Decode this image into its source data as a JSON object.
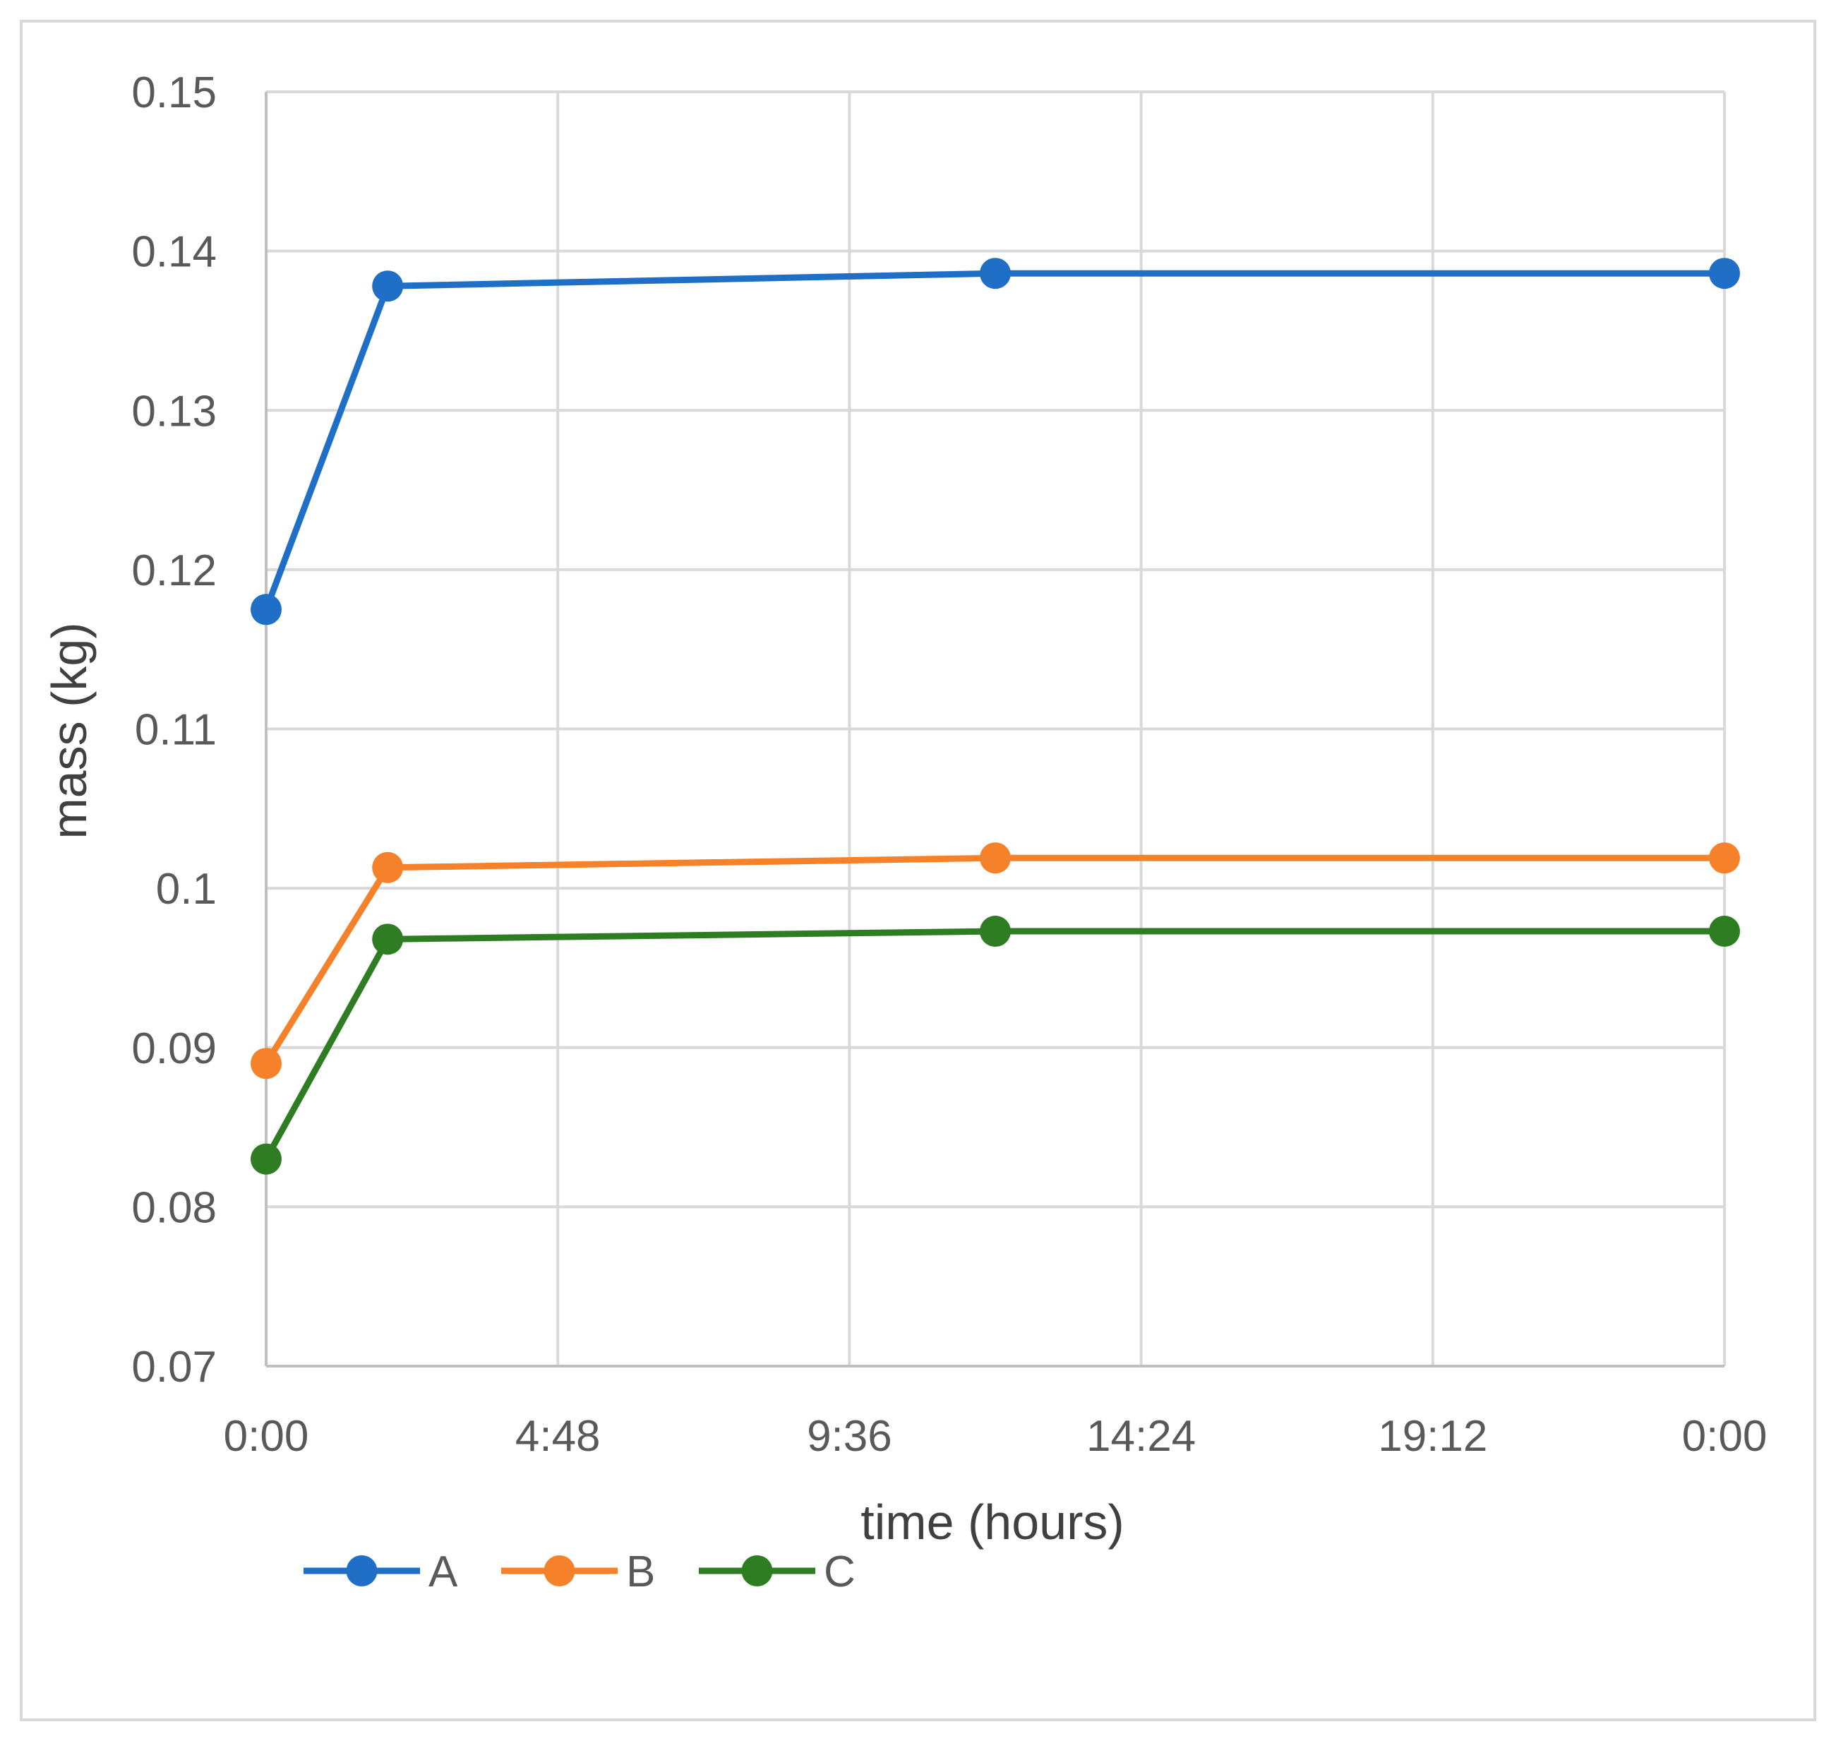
{
  "chart_data": {
    "type": "line",
    "title": "",
    "xlabel": "time (hours)",
    "ylabel": "mass (kg)",
    "xlim": [
      "0:00",
      "0:00"
    ],
    "ylim": [
      0.07,
      0.15
    ],
    "x_ticks": [
      "0:00",
      "4:48",
      "9:36",
      "14:24",
      "19:12",
      "0:00"
    ],
    "y_ticks": [
      "0.07",
      "0.08",
      "0.09",
      "0.1",
      "0.11",
      "0.12",
      "0.13",
      "0.14",
      "0.15"
    ],
    "x": [
      "0:00",
      "2:00",
      "12:00",
      "0:00"
    ],
    "grid": true,
    "legend": "bottom-left",
    "series": [
      {
        "name": "A",
        "color": "#1f6fc6",
        "values": [
          0.1175,
          0.1378,
          0.1386,
          0.1386
        ]
      },
      {
        "name": "B",
        "color": "#f5822a",
        "values": [
          0.089,
          0.1013,
          0.1019,
          0.1019
        ]
      },
      {
        "name": "C",
        "color": "#2e7d22",
        "values": [
          0.083,
          0.0968,
          0.0973,
          0.0973
        ]
      }
    ]
  }
}
